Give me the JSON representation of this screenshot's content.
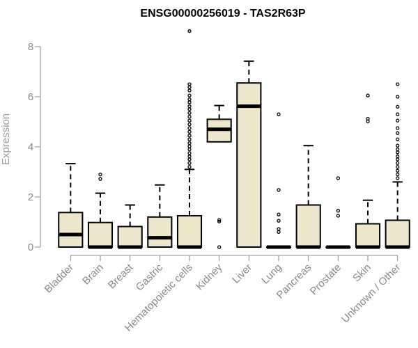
{
  "chart_data": {
    "type": "boxplot",
    "title": "ENSG00000256019 - TAS2R63P",
    "xlabel": "",
    "ylabel": "Expression",
    "ylim": [
      0,
      8.7
    ],
    "yticks": [
      0,
      2,
      4,
      6,
      8
    ],
    "grid": false,
    "box_fill": "#ede6cc",
    "categories": [
      "Bladder",
      "Brain",
      "Breast",
      "Gastric",
      "Hematopoietic cells",
      "Kidney",
      "Liver",
      "Lung",
      "Pancreas",
      "Prostate",
      "Skin",
      "Unknown / Other"
    ],
    "boxes": [
      {
        "whisker_low": 0,
        "q1": 0,
        "median": 0.5,
        "q3": 1.38,
        "whisker_high": 3.33,
        "outliers": []
      },
      {
        "whisker_low": 0,
        "q1": 0,
        "median": 0,
        "q3": 0.98,
        "whisker_high": 2.15,
        "outliers": [
          2.72,
          2.9
        ]
      },
      {
        "whisker_low": 0,
        "q1": 0,
        "median": 0,
        "q3": 0.82,
        "whisker_high": 1.68,
        "outliers": []
      },
      {
        "whisker_low": 0,
        "q1": 0,
        "median": 0.37,
        "q3": 1.2,
        "whisker_high": 2.48,
        "outliers": []
      },
      {
        "whisker_low": 0,
        "q1": 0,
        "median": 0,
        "q3": 1.25,
        "whisker_high": 3.1,
        "outliers": [
          3.2,
          3.35,
          3.5,
          3.62,
          3.75,
          3.9,
          4.02,
          4.15,
          4.3,
          4.45,
          4.6,
          4.75,
          4.9,
          5.05,
          5.2,
          5.35,
          5.5,
          5.62,
          5.78,
          5.9,
          6.05,
          6.25,
          6.38,
          6.5,
          8.62
        ]
      },
      {
        "whisker_low": 4.2,
        "q1": 4.2,
        "median": 4.7,
        "q3": 5.1,
        "whisker_high": 5.65,
        "outliers": [
          0,
          1.02,
          1.08
        ]
      },
      {
        "whisker_low": 0,
        "q1": 0,
        "median": 5.62,
        "q3": 6.55,
        "whisker_high": 7.42,
        "outliers": []
      },
      {
        "whisker_low": 0,
        "q1": 0,
        "median": 0,
        "q3": 0,
        "whisker_high": 0,
        "outliers": [
          0.6,
          0.72,
          1.05,
          1.3,
          2.28,
          5.3
        ]
      },
      {
        "whisker_low": 0,
        "q1": 0,
        "median": 0,
        "q3": 1.68,
        "whisker_high": 4.05,
        "outliers": []
      },
      {
        "whisker_low": 0,
        "q1": 0,
        "median": 0,
        "q3": 0,
        "whisker_high": 0,
        "outliers": [
          1.25,
          1.45,
          2.75
        ]
      },
      {
        "whisker_low": 0,
        "q1": 0,
        "median": 0,
        "q3": 0.93,
        "whisker_high": 1.87,
        "outliers": [
          5.02,
          5.12,
          6.05
        ]
      },
      {
        "whisker_low": 0,
        "q1": 0,
        "median": 0,
        "q3": 1.07,
        "whisker_high": 2.6,
        "outliers": [
          2.75,
          2.9,
          3.05,
          3.2,
          3.35,
          3.5,
          3.62,
          3.78,
          3.9,
          4.05,
          4.3,
          4.55,
          4.75,
          5.05,
          5.3,
          5.6,
          6.0,
          6.5
        ]
      }
    ]
  }
}
